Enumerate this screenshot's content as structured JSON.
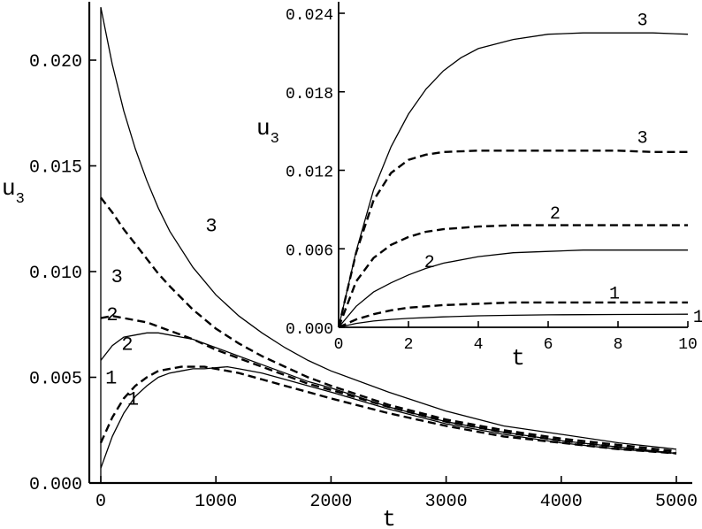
{
  "chart_data": [
    {
      "type": "line",
      "name": "main",
      "xlabel": "t",
      "ylabel": "u",
      "ylabel_sub": "3",
      "xlim": [
        -30,
        5000
      ],
      "ylim": [
        0,
        0.0235
      ],
      "xticks": [
        0,
        1000,
        2000,
        3000,
        4000,
        5000
      ],
      "xtick_labels": [
        "0",
        "1000",
        "2000",
        "3000",
        "4000",
        "5000"
      ],
      "yticks": [
        0,
        0.005,
        0.01,
        0.015,
        0.02
      ],
      "ytick_labels": [
        "0.000",
        "0.005",
        "0.010",
        "0.015",
        "0.020"
      ],
      "grid": false,
      "series": [
        {
          "label": "1",
          "style": "solid",
          "x": [
            0,
            100,
            200,
            300,
            400,
            500,
            600,
            700,
            800,
            900,
            1000,
            1100,
            1200,
            1400,
            1600,
            1800,
            2000,
            2500,
            3000,
            3500,
            4000,
            4500,
            5000
          ],
          "y": [
            0.0007,
            0.0022,
            0.0033,
            0.0041,
            0.0046,
            0.005,
            0.0052,
            0.0053,
            0.0054,
            0.0054,
            0.00545,
            0.0055,
            0.0054,
            0.0052,
            0.0049,
            0.0046,
            0.0043,
            0.0035,
            0.0028,
            0.0023,
            0.0019,
            0.0016,
            0.0014
          ]
        },
        {
          "label": "1",
          "style": "dashed",
          "x": [
            0,
            100,
            200,
            300,
            400,
            500,
            600,
            700,
            800,
            900,
            1000,
            1200,
            1400,
            1600,
            1800,
            2000,
            2500,
            3000,
            3500,
            4000,
            4500,
            5000
          ],
          "y": [
            0.0019,
            0.0031,
            0.004,
            0.0046,
            0.005,
            0.0053,
            0.0054,
            0.0055,
            0.0055,
            0.0055,
            0.0054,
            0.0052,
            0.0049,
            0.0046,
            0.0043,
            0.004,
            0.0033,
            0.0027,
            0.0022,
            0.0019,
            0.0016,
            0.0014
          ]
        },
        {
          "label": "2",
          "style": "solid",
          "x": [
            0,
            100,
            200,
            300,
            400,
            500,
            600,
            700,
            800,
            1000,
            1200,
            1400,
            1600,
            1800,
            2000,
            2500,
            3000,
            3500,
            4000,
            4500,
            5000
          ],
          "y": [
            0.0058,
            0.0065,
            0.0069,
            0.007,
            0.0071,
            0.0071,
            0.007,
            0.0069,
            0.0068,
            0.0064,
            0.006,
            0.0056,
            0.0052,
            0.0048,
            0.0045,
            0.0036,
            0.0029,
            0.0024,
            0.002,
            0.0017,
            0.0014
          ]
        },
        {
          "label": "2",
          "style": "dashed",
          "x": [
            0,
            100,
            200,
            300,
            400,
            500,
            600,
            800,
            1000,
            1200,
            1400,
            1600,
            1800,
            2000,
            2500,
            3000,
            3500,
            4000,
            4500,
            5000
          ],
          "y": [
            0.0078,
            0.0079,
            0.0078,
            0.0077,
            0.0076,
            0.0074,
            0.0072,
            0.0068,
            0.0063,
            0.0059,
            0.0055,
            0.0051,
            0.0047,
            0.0044,
            0.0036,
            0.0029,
            0.0024,
            0.002,
            0.0017,
            0.0014
          ]
        },
        {
          "label": "3",
          "style": "solid",
          "x": [
            0,
            100,
            200,
            300,
            400,
            500,
            600,
            800,
            1000,
            1200,
            1400,
            1600,
            1800,
            2000,
            2500,
            3000,
            3500,
            4000,
            4500,
            5000
          ],
          "y": [
            0.0225,
            0.0198,
            0.0176,
            0.0158,
            0.0143,
            0.013,
            0.0119,
            0.0102,
            0.0089,
            0.0079,
            0.0071,
            0.0064,
            0.0058,
            0.0053,
            0.0043,
            0.0034,
            0.0027,
            0.0023,
            0.0019,
            0.0016
          ]
        },
        {
          "label": "3",
          "style": "dashed",
          "x": [
            0,
            100,
            200,
            300,
            400,
            500,
            600,
            800,
            1000,
            1200,
            1400,
            1600,
            1800,
            2000,
            2500,
            3000,
            3500,
            4000,
            4500,
            5000
          ],
          "y": [
            0.0135,
            0.0128,
            0.012,
            0.0113,
            0.0106,
            0.0099,
            0.0093,
            0.0082,
            0.0073,
            0.0066,
            0.006,
            0.0055,
            0.005,
            0.0046,
            0.0037,
            0.003,
            0.0025,
            0.0021,
            0.0018,
            0.0015
          ]
        }
      ],
      "curve_labels": [
        {
          "text": "3",
          "x": 960,
          "y": 0.0119
        },
        {
          "text": "3",
          "x": 140,
          "y": 0.0095
        },
        {
          "text": "2",
          "x": 100,
          "y": 0.0077
        },
        {
          "text": "2",
          "x": 230,
          "y": 0.0063
        },
        {
          "text": "1",
          "x": 90,
          "y": 0.0047
        },
        {
          "text": "1",
          "x": 280,
          "y": 0.0037
        }
      ]
    },
    {
      "type": "line",
      "name": "inset",
      "xlabel": "t",
      "ylabel": "u",
      "ylabel_sub": "3",
      "xlim": [
        0,
        10
      ],
      "ylim": [
        0,
        0.024
      ],
      "xticks": [
        0,
        2,
        4,
        6,
        8,
        10
      ],
      "xtick_labels": [
        "0",
        "2",
        "4",
        "6",
        "8",
        "10"
      ],
      "yticks": [
        0,
        0.006,
        0.012,
        0.018,
        0.024
      ],
      "ytick_labels": [
        "0.000",
        "0.006",
        "0.012",
        "0.018",
        "0.024"
      ],
      "grid": false,
      "series": [
        {
          "label": "1",
          "style": "solid",
          "x": [
            0,
            0.5,
            1,
            1.5,
            2,
            3,
            4,
            5,
            6,
            7,
            8,
            9,
            10
          ],
          "y": [
            0,
            0.0003,
            0.00048,
            0.0006,
            0.00068,
            0.0008,
            0.00088,
            0.00092,
            0.00095,
            0.00097,
            0.00098,
            0.00099,
            0.001
          ]
        },
        {
          "label": "1",
          "style": "dashed",
          "x": [
            0,
            0.5,
            1,
            1.5,
            2,
            3,
            4,
            5,
            6,
            7,
            8,
            9,
            10
          ],
          "y": [
            0,
            0.0006,
            0.001,
            0.0013,
            0.0015,
            0.0017,
            0.0018,
            0.0019,
            0.0019,
            0.0019,
            0.0019,
            0.0019,
            0.0019
          ]
        },
        {
          "label": "2",
          "style": "solid",
          "x": [
            0,
            0.5,
            1,
            1.5,
            2,
            2.5,
            3,
            4,
            5,
            6,
            7,
            8,
            9,
            10
          ],
          "y": [
            0,
            0.0016,
            0.0027,
            0.0034,
            0.004,
            0.0045,
            0.0049,
            0.0054,
            0.0057,
            0.0058,
            0.0059,
            0.0059,
            0.0059,
            0.0059
          ]
        },
        {
          "label": "2",
          "style": "dashed",
          "x": [
            0,
            0.5,
            1,
            1.5,
            2,
            2.5,
            3,
            4,
            5,
            6,
            7,
            8,
            9,
            10
          ],
          "y": [
            0,
            0.0035,
            0.0053,
            0.0063,
            0.0069,
            0.0073,
            0.0075,
            0.0077,
            0.0078,
            0.0078,
            0.0078,
            0.0078,
            0.0078,
            0.0078
          ]
        },
        {
          "label": "3",
          "style": "solid",
          "x": [
            0,
            0.5,
            1,
            1.5,
            2,
            2.5,
            3,
            3.5,
            4,
            5,
            6,
            7,
            8,
            9,
            10
          ],
          "y": [
            0,
            0.0058,
            0.0105,
            0.0138,
            0.0163,
            0.0182,
            0.0196,
            0.0206,
            0.0213,
            0.022,
            0.0224,
            0.0225,
            0.0225,
            0.0225,
            0.0224
          ]
        },
        {
          "label": "3",
          "style": "dashed",
          "x": [
            0,
            0.5,
            1,
            1.5,
            2,
            2.5,
            3,
            4,
            5,
            6,
            7,
            8,
            9,
            10
          ],
          "y": [
            0,
            0.0057,
            0.0097,
            0.0118,
            0.0128,
            0.0132,
            0.0134,
            0.0135,
            0.0135,
            0.0135,
            0.0135,
            0.0135,
            0.0134,
            0.0134
          ]
        }
      ],
      "curve_labels": [
        {
          "text": "3",
          "x": 8.7,
          "y": 0.0231
        },
        {
          "text": "3",
          "x": 8.7,
          "y": 0.0141
        },
        {
          "text": "2",
          "x": 6.2,
          "y": 0.0083
        },
        {
          "text": "2",
          "x": 2.6,
          "y": 0.0046
        },
        {
          "text": "1",
          "x": 7.9,
          "y": 0.0022
        },
        {
          "text": "1",
          "x": 10.3,
          "y": 0.0004
        }
      ]
    }
  ]
}
